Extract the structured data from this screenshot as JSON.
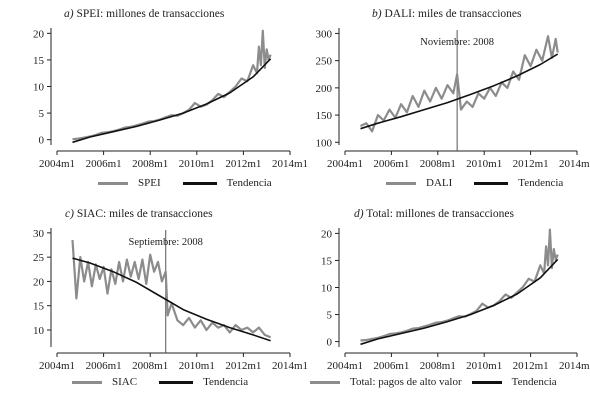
{
  "colors": {
    "observed": "#8c8c8c",
    "trend": "#111111",
    "axis": "#222222",
    "annotation": "#555555"
  },
  "chart_data": [
    {
      "id": "a",
      "type": "line",
      "title_letter": "a)",
      "title_text": "SPEI: millones de transacciones",
      "x_ticks": [
        "2004m1",
        "2006m1",
        "2008m1",
        "2010m1",
        "2012m1",
        "2014m1"
      ],
      "xlim": [
        "2004-01",
        "2014-01"
      ],
      "ylim": [
        -1,
        21
      ],
      "y_ticks": [
        "0",
        "5",
        "10",
        "15",
        "20"
      ],
      "y_tick_values": [
        0,
        5,
        10,
        15,
        20
      ],
      "legend": [
        "SPEI",
        "Tendencia"
      ],
      "annotation": null,
      "series": [
        {
          "name": "SPEI",
          "x": [
            "2004-09",
            "2004-12",
            "2005-03",
            "2005-06",
            "2005-09",
            "2005-12",
            "2006-03",
            "2006-06",
            "2006-09",
            "2006-12",
            "2007-03",
            "2007-06",
            "2007-09",
            "2007-12",
            "2008-03",
            "2008-06",
            "2008-09",
            "2008-12",
            "2009-03",
            "2009-06",
            "2009-09",
            "2009-12",
            "2010-03",
            "2010-06",
            "2010-09",
            "2010-12",
            "2011-03",
            "2011-06",
            "2011-09",
            "2011-12",
            "2012-03",
            "2012-06",
            "2012-08",
            "2012-09",
            "2012-10",
            "2012-11",
            "2012-12",
            "2013-01",
            "2013-02",
            "2013-03"
          ],
          "y": [
            0.1,
            0.2,
            0.4,
            0.6,
            0.9,
            1.3,
            1.4,
            1.6,
            1.9,
            2.3,
            2.4,
            2.7,
            3.0,
            3.4,
            3.5,
            3.8,
            4.2,
            4.6,
            4.5,
            5.0,
            5.6,
            6.9,
            6.2,
            6.6,
            7.4,
            8.6,
            8.0,
            9.0,
            10.0,
            11.5,
            11.0,
            14.0,
            12.5,
            17.5,
            14.0,
            20.5,
            13.5,
            17.0,
            15.0,
            16.0
          ]
        },
        {
          "name": "Tendencia",
          "x": [
            "2004-09",
            "2005-06",
            "2006-06",
            "2007-06",
            "2008-06",
            "2009-06",
            "2010-06",
            "2011-06",
            "2012-06",
            "2013-03"
          ],
          "y": [
            -0.5,
            0.5,
            1.5,
            2.5,
            3.7,
            5.0,
            6.7,
            8.8,
            11.8,
            15.2
          ]
        }
      ]
    },
    {
      "id": "b",
      "type": "line",
      "title_letter": "b)",
      "title_text": "DALI: miles de transacciones",
      "x_ticks": [
        "2004m1",
        "2006m1",
        "2008m1",
        "2010m1",
        "2012m1",
        "2014m1"
      ],
      "xlim": [
        "2004-01",
        "2014-01"
      ],
      "ylim": [
        95,
        310
      ],
      "y_ticks": [
        "100",
        "150",
        "200",
        "250",
        "300"
      ],
      "y_tick_values": [
        100,
        150,
        200,
        250,
        300
      ],
      "legend": [
        "DALI",
        "Tendencia"
      ],
      "annotation": {
        "text": "Noviembre: 2008",
        "x": "2008-11"
      },
      "series": [
        {
          "name": "DALI",
          "x": [
            "2004-09",
            "2004-12",
            "2005-03",
            "2005-06",
            "2005-09",
            "2005-12",
            "2006-03",
            "2006-06",
            "2006-09",
            "2006-12",
            "2007-03",
            "2007-06",
            "2007-09",
            "2007-12",
            "2008-03",
            "2008-06",
            "2008-09",
            "2008-11",
            "2009-01",
            "2009-04",
            "2009-07",
            "2009-10",
            "2010-01",
            "2010-04",
            "2010-07",
            "2010-10",
            "2011-01",
            "2011-04",
            "2011-07",
            "2011-10",
            "2012-01",
            "2012-04",
            "2012-07",
            "2012-10",
            "2012-12",
            "2013-02",
            "2013-03"
          ],
          "y": [
            130,
            135,
            120,
            150,
            140,
            160,
            145,
            170,
            155,
            185,
            165,
            195,
            175,
            200,
            180,
            205,
            190,
            225,
            160,
            175,
            165,
            190,
            180,
            200,
            185,
            210,
            200,
            230,
            215,
            260,
            240,
            270,
            250,
            295,
            255,
            290,
            265
          ]
        },
        {
          "name": "Tendencia",
          "x": [
            "2004-09",
            "2005-06",
            "2006-06",
            "2007-06",
            "2008-06",
            "2009-06",
            "2010-06",
            "2011-06",
            "2012-06",
            "2013-03"
          ],
          "y": [
            125,
            135,
            147,
            160,
            173,
            188,
            204,
            222,
            243,
            262
          ]
        }
      ]
    },
    {
      "id": "c",
      "type": "line",
      "title_letter": "c)",
      "title_text": "SIAC: miles de transacciones",
      "x_ticks": [
        "2004m1",
        "2006m1",
        "2008m1",
        "2010m1",
        "2012m1",
        "2014m1"
      ],
      "xlim": [
        "2004-01",
        "2014-01"
      ],
      "ylim": [
        6.5,
        31
      ],
      "y_ticks": [
        "10",
        "15",
        "20",
        "25",
        "30"
      ],
      "y_tick_values": [
        10,
        15,
        20,
        25,
        30
      ],
      "legend": [
        "SIAC",
        "Tendencia"
      ],
      "annotation": {
        "text": "Septiembre: 2008",
        "x": "2008-09"
      },
      "series": [
        {
          "name": "SIAC",
          "x": [
            "2004-09",
            "2004-11",
            "2005-01",
            "2005-03",
            "2005-05",
            "2005-07",
            "2005-09",
            "2005-11",
            "2006-01",
            "2006-03",
            "2006-05",
            "2006-07",
            "2006-09",
            "2006-11",
            "2007-01",
            "2007-03",
            "2007-05",
            "2007-07",
            "2007-09",
            "2007-11",
            "2008-01",
            "2008-03",
            "2008-05",
            "2008-07",
            "2008-09",
            "2008-10",
            "2008-12",
            "2009-03",
            "2009-06",
            "2009-09",
            "2009-12",
            "2010-03",
            "2010-06",
            "2010-09",
            "2010-12",
            "2011-03",
            "2011-06",
            "2011-09",
            "2011-12",
            "2012-03",
            "2012-06",
            "2012-09",
            "2012-12",
            "2013-03"
          ],
          "y": [
            28.5,
            16.5,
            25.0,
            20.0,
            24.0,
            19.0,
            23.5,
            20.5,
            23.0,
            17.5,
            22.5,
            19.5,
            24.0,
            20.0,
            24.5,
            21.0,
            24.0,
            20.5,
            24.5,
            19.5,
            25.5,
            22.0,
            24.0,
            20.0,
            22.0,
            13.0,
            15.5,
            12.0,
            11.0,
            12.5,
            10.5,
            12.0,
            10.0,
            11.5,
            10.5,
            11.0,
            9.5,
            11.0,
            10.0,
            10.5,
            9.5,
            10.5,
            9.0,
            8.5
          ]
        },
        {
          "name": "Tendencia",
          "x": [
            "2004-09",
            "2005-06",
            "2006-06",
            "2007-06",
            "2008-06",
            "2009-06",
            "2010-06",
            "2011-06",
            "2012-06",
            "2013-03"
          ],
          "y": [
            24.8,
            23.8,
            22.0,
            19.8,
            17.0,
            14.2,
            12.2,
            10.5,
            9.0,
            7.8
          ]
        }
      ]
    },
    {
      "id": "d",
      "type": "line",
      "title_letter": "d)",
      "title_text": "Total: millones de transacciones",
      "x_ticks": [
        "2004m1",
        "2006m1",
        "2008m1",
        "2010m1",
        "2012m1",
        "2014m1"
      ],
      "xlim": [
        "2004-01",
        "2014-01"
      ],
      "ylim": [
        -1,
        21
      ],
      "y_ticks": [
        "0",
        "5",
        "10",
        "15",
        "20"
      ],
      "y_tick_values": [
        0,
        5,
        10,
        15,
        20
      ],
      "legend": [
        "Total: pagos de alto valor",
        "Tendencia"
      ],
      "annotation": null,
      "series": [
        {
          "name": "Total: pagos de alto valor",
          "x": [
            "2004-09",
            "2004-12",
            "2005-03",
            "2005-06",
            "2005-09",
            "2005-12",
            "2006-03",
            "2006-06",
            "2006-09",
            "2006-12",
            "2007-03",
            "2007-06",
            "2007-09",
            "2007-12",
            "2008-03",
            "2008-06",
            "2008-09",
            "2008-12",
            "2009-03",
            "2009-06",
            "2009-09",
            "2009-12",
            "2010-03",
            "2010-06",
            "2010-09",
            "2010-12",
            "2011-03",
            "2011-06",
            "2011-09",
            "2011-12",
            "2012-03",
            "2012-06",
            "2012-08",
            "2012-09",
            "2012-10",
            "2012-11",
            "2012-12",
            "2013-01",
            "2013-02",
            "2013-03"
          ],
          "y": [
            0.2,
            0.3,
            0.5,
            0.7,
            1.0,
            1.4,
            1.5,
            1.7,
            2.0,
            2.4,
            2.5,
            2.8,
            3.1,
            3.5,
            3.6,
            3.9,
            4.3,
            4.7,
            4.6,
            5.1,
            5.7,
            7.0,
            6.3,
            6.7,
            7.5,
            8.7,
            8.1,
            9.1,
            10.1,
            11.6,
            11.1,
            14.1,
            12.6,
            17.6,
            14.1,
            20.7,
            13.6,
            17.1,
            15.1,
            16.1
          ]
        },
        {
          "name": "Tendencia",
          "x": [
            "2004-09",
            "2005-06",
            "2006-06",
            "2007-06",
            "2008-06",
            "2009-06",
            "2010-06",
            "2011-06",
            "2012-06",
            "2013-03"
          ],
          "y": [
            -0.5,
            0.5,
            1.5,
            2.5,
            3.7,
            5.0,
            6.7,
            8.8,
            11.8,
            15.2
          ]
        }
      ]
    }
  ]
}
